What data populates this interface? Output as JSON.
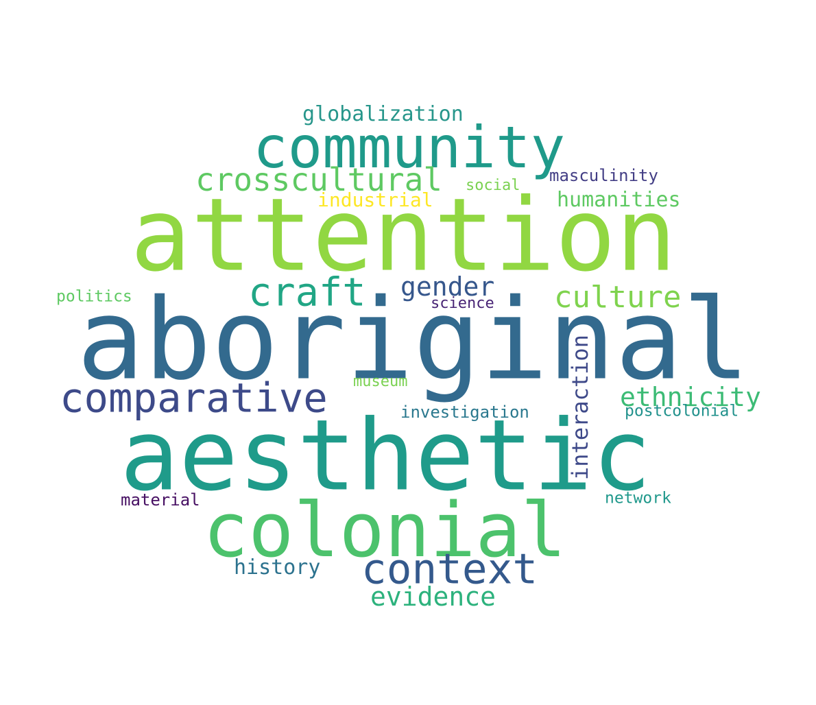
{
  "word_cloud": {
    "words": [
      {
        "text": "aboriginal",
        "color": "#336a8e"
      },
      {
        "text": "attention",
        "color": "#91d742"
      },
      {
        "text": "aesthetic",
        "color": "#1f9b8a"
      },
      {
        "text": "colonial",
        "color": "#4cc26c"
      },
      {
        "text": "community",
        "color": "#1f9a8a"
      },
      {
        "text": "context",
        "color": "#34598c"
      },
      {
        "text": "comparative",
        "color": "#3d4a89"
      },
      {
        "text": "crosscultural",
        "color": "#5ec962"
      },
      {
        "text": "craft",
        "color": "#21a685"
      },
      {
        "text": "culture",
        "color": "#7fd34e"
      },
      {
        "text": "gender",
        "color": "#36578c"
      },
      {
        "text": "ethnicity",
        "color": "#3cbb75"
      },
      {
        "text": "evidence",
        "color": "#2db27d"
      },
      {
        "text": "interaction",
        "color": "#3e4989"
      },
      {
        "text": "humanities",
        "color": "#5ec962"
      },
      {
        "text": "globalization",
        "color": "#27968b"
      },
      {
        "text": "history",
        "color": "#2c728e"
      },
      {
        "text": "industrial",
        "color": "#fde725"
      },
      {
        "text": "masculinity",
        "color": "#433e85"
      },
      {
        "text": "investigation",
        "color": "#2a788e"
      },
      {
        "text": "postcolonial",
        "color": "#21918c"
      },
      {
        "text": "politics",
        "color": "#5ec962"
      },
      {
        "text": "science",
        "color": "#482475"
      },
      {
        "text": "social",
        "color": "#7ad151"
      },
      {
        "text": "museum",
        "color": "#7ad151"
      },
      {
        "text": "material",
        "color": "#471063"
      },
      {
        "text": "network",
        "color": "#1f988b"
      }
    ]
  }
}
